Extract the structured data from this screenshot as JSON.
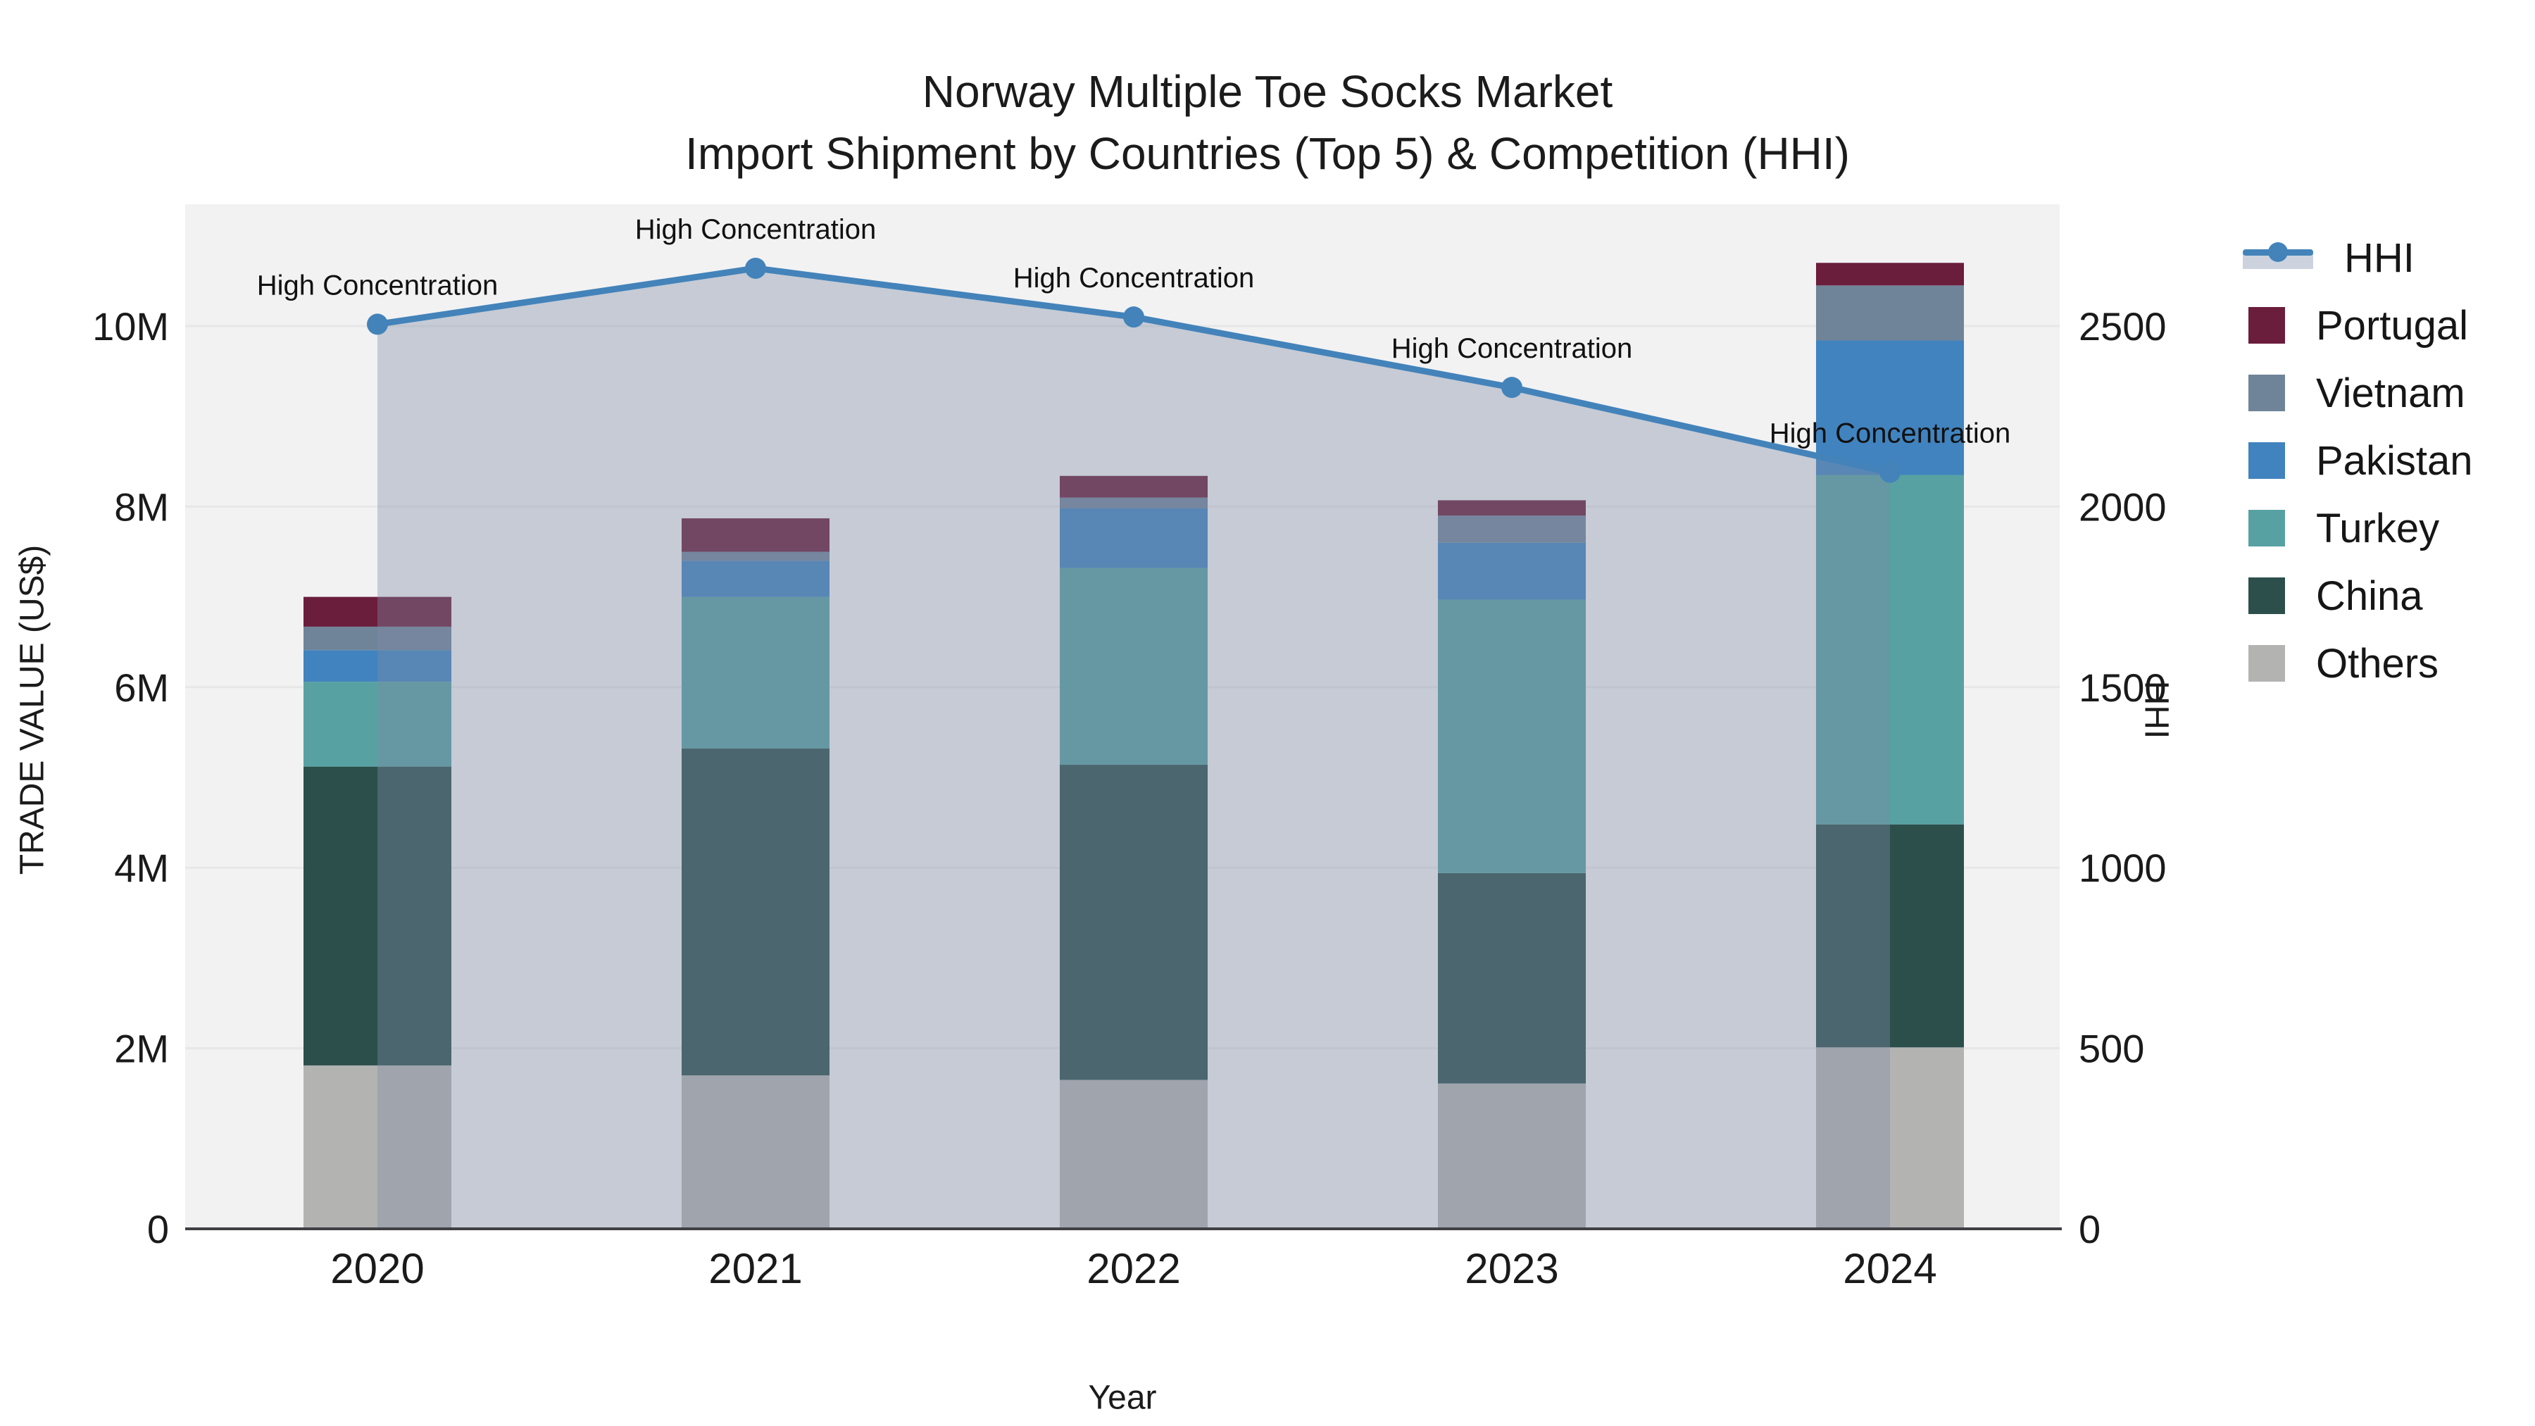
{
  "title": {
    "line1": "Norway Multiple Toe Socks Market",
    "line2": "Import Shipment by Countries (Top 5) & Competition (HHI)"
  },
  "axes": {
    "x": {
      "title": "Year",
      "ticks": [
        "2020",
        "2021",
        "2022",
        "2023",
        "2024"
      ]
    },
    "y_left": {
      "title": "TRADE VALUE (US$)",
      "ticks": [
        "0",
        "2M",
        "4M",
        "6M",
        "8M",
        "10M"
      ],
      "tick_values_musd": [
        0,
        2,
        4,
        6,
        8,
        10
      ]
    },
    "y_right": {
      "title": "HHI",
      "ticks": [
        "0",
        "500",
        "1000",
        "1500",
        "2000",
        "2500"
      ],
      "tick_values": [
        0,
        500,
        1000,
        1500,
        2000,
        2500
      ]
    }
  },
  "legend": {
    "items": [
      {
        "label": "HHI",
        "type": "line",
        "color": "#4383BA"
      },
      {
        "label": "Portugal",
        "type": "square",
        "color": "#6B1D3C"
      },
      {
        "label": "Vietnam",
        "type": "square",
        "color": "#708499"
      },
      {
        "label": "Pakistan",
        "type": "square",
        "color": "#4183BE"
      },
      {
        "label": "Turkey",
        "type": "square",
        "color": "#58A1A2"
      },
      {
        "label": "China",
        "type": "square",
        "color": "#2C4F4C"
      },
      {
        "label": "Others",
        "type": "square",
        "color": "#B3B3B2"
      }
    ]
  },
  "colors": {
    "plot_bg": "#F2F2F3",
    "grid": "#E7E7E7",
    "axis_line": "#3F3F44",
    "hhi_line": "#4383BA",
    "hhi_area": "rgba(125,140,165,0.38)",
    "text": "#1A1A1A",
    "annotation_text": "#111111"
  },
  "chart_data": {
    "type": "bar+line",
    "title": "Norway Multiple Toe Socks Market — Import Shipment by Countries (Top 5) & Competition (HHI)",
    "xlabel": "Year",
    "ylabel_left": "TRADE VALUE (US$)",
    "ylabel_right": "HHI",
    "categories": [
      "2020",
      "2021",
      "2022",
      "2023",
      "2024"
    ],
    "bar_mode": "stacked",
    "bar_unit": "USD millions",
    "series": [
      {
        "id": "others",
        "name": "Others",
        "color": "#B3B3B2",
        "values_musd": [
          1.81,
          1.7,
          1.65,
          1.61,
          2.01
        ]
      },
      {
        "id": "china",
        "name": "China",
        "color": "#2C4F4C",
        "values_musd": [
          3.31,
          3.62,
          3.49,
          2.33,
          2.47
        ]
      },
      {
        "id": "turkey",
        "name": "Turkey",
        "color": "#58A1A2",
        "values_musd": [
          0.94,
          1.68,
          2.18,
          3.03,
          3.87
        ]
      },
      {
        "id": "pakistan",
        "name": "Pakistan",
        "color": "#4183BE",
        "values_musd": [
          0.35,
          0.4,
          0.66,
          0.63,
          1.49
        ]
      },
      {
        "id": "vietnam",
        "name": "Vietnam",
        "color": "#708499",
        "values_musd": [
          0.26,
          0.1,
          0.12,
          0.3,
          0.61
        ]
      },
      {
        "id": "portugal",
        "name": "Portugal",
        "color": "#6B1D3C",
        "values_musd": [
          0.33,
          0.37,
          0.24,
          0.17,
          0.25
        ]
      }
    ],
    "stack_totals_musd": [
      7.0,
      7.87,
      8.34,
      8.07,
      10.7
    ],
    "line_series": {
      "name": "HHI",
      "axis": "right",
      "color": "#4383BA",
      "area": true,
      "area_color": "rgba(125,140,165,0.38)",
      "values": [
        2505,
        2660,
        2525,
        2330,
        2095
      ]
    },
    "annotations": [
      {
        "text": "High Concentration",
        "x": "2020"
      },
      {
        "text": "High Concentration",
        "x": "2021"
      },
      {
        "text": "High Concentration",
        "x": "2022"
      },
      {
        "text": "High Concentration",
        "x": "2023"
      },
      {
        "text": "High Concentration",
        "x": "2024"
      }
    ],
    "y_left_range_musd": [
      0,
      11.35
    ],
    "y_right_range": [
      0,
      2838
    ],
    "grid": true,
    "legend_position": "right"
  }
}
